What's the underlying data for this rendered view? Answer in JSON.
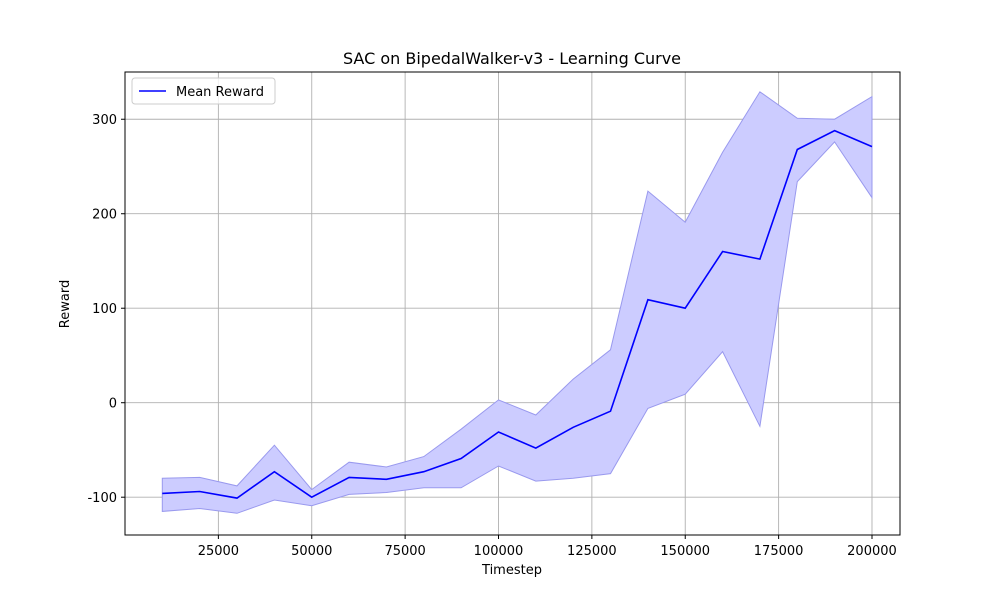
{
  "chart_data": {
    "type": "line",
    "title": "SAC on BipedalWalker-v3 - Learning Curve",
    "xlabel": "Timestep",
    "ylabel": "Reward",
    "xlim": [
      0,
      207500
    ],
    "ylim": [
      -140,
      350
    ],
    "xticks": [
      25000,
      50000,
      75000,
      100000,
      125000,
      150000,
      175000,
      200000
    ],
    "yticks": [
      -100,
      0,
      100,
      200,
      300
    ],
    "grid": true,
    "legend_position": "top-left",
    "x": [
      10000,
      20000,
      30000,
      40000,
      50000,
      60000,
      70000,
      80000,
      90000,
      100000,
      110000,
      120000,
      130000,
      140000,
      150000,
      160000,
      170000,
      180000,
      190000,
      200000
    ],
    "series": [
      {
        "name": "Mean Reward",
        "color": "#0000ff",
        "values": [
          -96,
          -94,
          -101,
          -73,
          -100,
          -79,
          -81,
          -73,
          -59,
          -31,
          -48,
          -26,
          -9,
          109,
          100,
          160,
          152,
          268,
          288,
          271
        ],
        "band_upper": [
          -80,
          -79,
          -88,
          -45,
          -92,
          -63,
          -68,
          -57,
          -28,
          3,
          -13,
          25,
          56,
          224,
          191,
          265,
          329,
          301,
          300,
          324
        ],
        "band_lower": [
          -115,
          -112,
          -117,
          -103,
          -109,
          -97,
          -95,
          -90,
          -90,
          -67,
          -83,
          -80,
          -75,
          -6,
          9,
          54,
          -25,
          234,
          276,
          217
        ],
        "band_color": "#ccccff"
      }
    ]
  }
}
